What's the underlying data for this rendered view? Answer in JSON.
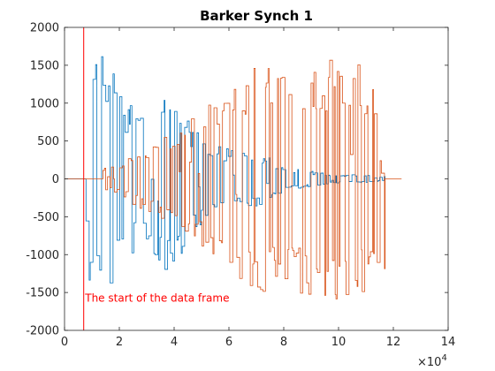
{
  "chart_data": {
    "type": "line",
    "title": "Barker Synch 1",
    "xlabel": "",
    "ylabel": "",
    "xlim": [
      0,
      140000
    ],
    "ylim": [
      -2000,
      2000
    ],
    "x_ticks": [
      0,
      20000,
      40000,
      60000,
      80000,
      100000,
      120000,
      140000
    ],
    "x_tick_labels": [
      "0",
      "2",
      "4",
      "6",
      "8",
      "10",
      "12",
      "14"
    ],
    "x_exponent_label": "×10",
    "x_exponent_power": "4",
    "y_ticks": [
      -2000,
      -1500,
      -1000,
      -500,
      0,
      500,
      1000,
      1500,
      2000
    ],
    "y_tick_labels": [
      "-2000",
      "-1500",
      "-1000",
      "-500",
      "0",
      "500",
      "1000",
      "1500",
      "2000"
    ],
    "grid": false,
    "series": [
      {
        "color": "#0072bd",
        "x_range": [
          0,
          117000
        ],
        "active_range": [
          7000,
          117000
        ],
        "envelope": [
          [
            7000,
            0
          ],
          [
            9000,
            1550
          ],
          [
            12000,
            1700
          ],
          [
            15000,
            1650
          ],
          [
            18000,
            1450
          ],
          [
            22000,
            1100
          ],
          [
            27000,
            1000
          ],
          [
            32000,
            1150
          ],
          [
            37000,
            1200
          ],
          [
            42000,
            1050
          ],
          [
            46000,
            700
          ],
          [
            50000,
            600
          ],
          [
            55000,
            450
          ],
          [
            60000,
            400
          ],
          [
            65000,
            350
          ],
          [
            70000,
            400
          ],
          [
            75000,
            300
          ],
          [
            80000,
            150
          ],
          [
            90000,
            100
          ],
          [
            100000,
            60
          ],
          [
            110000,
            50
          ],
          [
            117000,
            30
          ]
        ]
      },
      {
        "color": "#d95319",
        "x_range": [
          0,
          123000
        ],
        "active_range": [
          14000,
          117000
        ],
        "envelope": [
          [
            14000,
            150
          ],
          [
            22000,
            300
          ],
          [
            30000,
            450
          ],
          [
            40000,
            650
          ],
          [
            50000,
            900
          ],
          [
            58000,
            1150
          ],
          [
            66000,
            1400
          ],
          [
            74000,
            1600
          ],
          [
            82000,
            1650
          ],
          [
            90000,
            1600
          ],
          [
            100000,
            1600
          ],
          [
            108000,
            1550
          ],
          [
            114000,
            1500
          ],
          [
            117000,
            1300
          ]
        ]
      }
    ],
    "annotations": [
      {
        "type": "vline",
        "x": 7000,
        "color": "#ff0000",
        "text": "The start of the data frame",
        "text_x": 7500,
        "text_y": -1620
      }
    ]
  }
}
